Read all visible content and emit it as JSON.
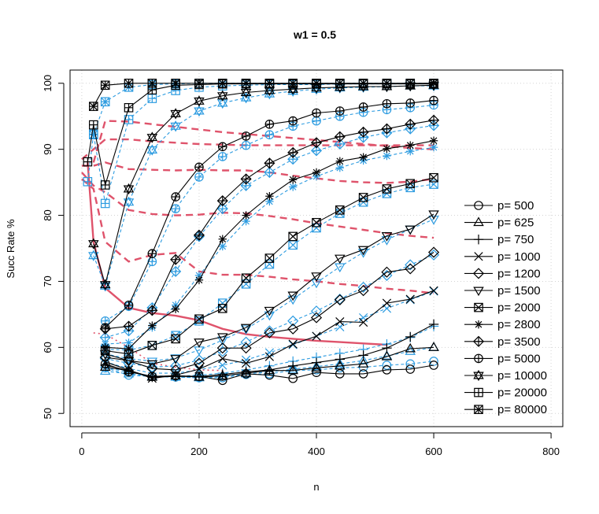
{
  "chart_data": {
    "type": "line",
    "title": "w1 = 0.5",
    "xlabel": "n",
    "ylabel": "Succ Rate %",
    "xlim": [
      -20,
      820
    ],
    "ylim": [
      48,
      102
    ],
    "xticks": [
      0,
      200,
      400,
      600,
      800
    ],
    "yticks": [
      50,
      60,
      70,
      80,
      90,
      100
    ],
    "grid": true,
    "legend_position": "right",
    "colors": {
      "black": "#000000",
      "blue": "#2c9be0",
      "red": "#df536b",
      "grid": "#d3d3d3"
    },
    "x": [
      40,
      80,
      120,
      160,
      200,
      240,
      280,
      320,
      360,
      400,
      440,
      480,
      520,
      560,
      600
    ],
    "series": [
      {
        "name": "p= 500",
        "symbol": "circle",
        "black": [
          57.5,
          56.3,
          55.6,
          55.7,
          55.6,
          55.0,
          56.0,
          55.8,
          55.3,
          56.2,
          56.0,
          56.0,
          56.6,
          56.7,
          57.3
        ],
        "blue": [
          56.9,
          55.8,
          55.6,
          55.5,
          55.4,
          55.4,
          55.9,
          56.0,
          56.5,
          56.6,
          56.9,
          57.0,
          57.3,
          57.5,
          57.9
        ]
      },
      {
        "name": "p= 625",
        "symbol": "triangle-up",
        "black": [
          57.0,
          56.5,
          55.5,
          55.7,
          55.5,
          55.7,
          56.1,
          56.5,
          56.5,
          56.9,
          57.2,
          57.5,
          58.6,
          59.8,
          60.0
        ],
        "blue": [
          56.4,
          56.0,
          55.6,
          55.5,
          55.4,
          55.6,
          56.0,
          56.3,
          56.7,
          57.1,
          57.5,
          58.0,
          58.7,
          59.4,
          60.0
        ]
      },
      {
        "name": "p= 750",
        "symbol": "plus",
        "black": [
          57.3,
          56.5,
          55.5,
          55.6,
          55.6,
          55.9,
          56.3,
          56.6,
          57.2,
          57.7,
          58.2,
          58.8,
          59.9,
          61.6,
          63.5
        ],
        "blue": [
          57.0,
          56.2,
          55.7,
          55.6,
          55.8,
          56.1,
          56.6,
          57.2,
          57.9,
          58.5,
          59.1,
          59.7,
          60.5,
          61.5,
          63.2
        ]
      },
      {
        "name": "p= 1000",
        "symbol": "x",
        "black": [
          57.8,
          56.6,
          55.3,
          55.8,
          56.7,
          58.3,
          57.6,
          58.6,
          60.5,
          61.7,
          63.9,
          63.8,
          66.7,
          67.3,
          68.6
        ],
        "blue": [
          57.8,
          56.8,
          56.1,
          56.1,
          56.6,
          57.3,
          58.1,
          59.2,
          60.4,
          61.7,
          63.1,
          64.5,
          65.9,
          67.2,
          68.5
        ]
      },
      {
        "name": "p= 1200",
        "symbol": "diamond",
        "black": [
          58.5,
          58.0,
          56.8,
          56.6,
          57.6,
          59.9,
          59.9,
          62.2,
          62.8,
          64.5,
          67.2,
          68.6,
          71.4,
          71.9,
          74.4
        ],
        "blue": [
          58.3,
          57.6,
          57.0,
          57.2,
          58.1,
          59.4,
          60.8,
          62.5,
          64.0,
          65.5,
          67.3,
          69.1,
          70.9,
          72.5,
          74.0
        ]
      },
      {
        "name": "p= 1500",
        "symbol": "triangle-down",
        "black": [
          59.0,
          58.0,
          57.5,
          58.3,
          60.8,
          61.6,
          63.0,
          65.6,
          67.9,
          70.8,
          73.5,
          74.8,
          76.9,
          77.9,
          80.2
        ],
        "blue": [
          59.0,
          58.3,
          57.9,
          58.4,
          59.6,
          61.1,
          62.8,
          64.9,
          67.3,
          69.8,
          72.2,
          74.4,
          76.3,
          77.9,
          79.4
        ]
      },
      {
        "name": "p= 2000",
        "symbol": "square-x",
        "black": [
          59.5,
          59.0,
          60.3,
          61.3,
          64.3,
          65.9,
          70.5,
          73.5,
          76.8,
          78.9,
          80.8,
          82.7,
          84.0,
          84.8,
          85.7
        ],
        "blue": [
          59.7,
          59.6,
          60.3,
          61.8,
          64.0,
          66.7,
          69.6,
          72.6,
          75.5,
          78.1,
          80.3,
          82.0,
          83.3,
          84.2,
          84.7
        ]
      },
      {
        "name": "p= 2800",
        "symbol": "asterisk",
        "black": [
          60.0,
          59.8,
          63.3,
          65.8,
          70.2,
          76.4,
          80.0,
          82.9,
          85.4,
          86.5,
          88.2,
          88.8,
          90.1,
          90.6,
          91.3
        ],
        "blue": [
          60.5,
          60.7,
          63.0,
          66.4,
          70.9,
          75.3,
          79.1,
          82.1,
          84.3,
          85.9,
          87.2,
          88.3,
          89.0,
          89.7,
          90.3
        ]
      },
      {
        "name": "p= 3500",
        "symbol": "diamond-plus",
        "black": [
          62.8,
          63.2,
          65.6,
          73.3,
          77.0,
          82.2,
          85.5,
          87.9,
          89.5,
          91.0,
          91.9,
          92.6,
          93.1,
          93.8,
          94.4
        ],
        "blue": [
          61.5,
          62.5,
          66.0,
          71.5,
          76.8,
          81.0,
          84.5,
          86.5,
          88.5,
          89.8,
          90.8,
          91.8,
          92.5,
          93.1,
          93.6
        ]
      },
      {
        "name": "p= 5000",
        "symbol": "circle-plus",
        "black": [
          63.0,
          66.4,
          74.2,
          82.8,
          87.3,
          90.4,
          92.0,
          93.8,
          94.3,
          95.5,
          95.8,
          96.4,
          96.9,
          97.0,
          97.4
        ],
        "blue": [
          64.0,
          66.2,
          73.0,
          81.0,
          85.8,
          88.9,
          90.6,
          92.2,
          93.5,
          94.3,
          95.0,
          95.6,
          96.0,
          96.3,
          96.7
        ]
      },
      {
        "name": "p= 10000",
        "symbol": "star-triangle",
        "black": [
          69.5,
          84.0,
          91.8,
          95.4,
          97.3,
          98.1,
          98.6,
          98.9,
          99.1,
          99.3,
          99.4,
          99.5,
          99.5,
          99.6,
          99.7
        ],
        "blue": [
          69.3,
          82.0,
          89.9,
          93.5,
          95.8,
          97.0,
          97.8,
          98.4,
          98.8,
          99.1,
          99.3,
          99.4,
          99.5,
          99.6,
          99.6
        ]
      },
      {
        "name": "p= 20000",
        "symbol": "square-plus",
        "black": [
          84.6,
          96.3,
          99.0,
          99.7,
          99.8,
          99.9,
          99.9,
          99.9,
          99.9,
          99.9,
          99.9,
          99.9,
          99.9,
          99.9,
          99.9
        ],
        "blue": [
          81.8,
          94.5,
          97.7,
          98.9,
          99.4,
          99.6,
          99.7,
          99.8,
          99.8,
          99.8,
          99.9,
          99.9,
          99.9,
          99.9,
          99.9
        ]
      },
      {
        "name": "p= 80000",
        "symbol": "square-cross",
        "black": [
          99.7,
          100.0,
          100.0,
          100.0,
          100.0,
          100.0,
          100.0,
          100.0,
          100.0,
          100.0,
          100.0,
          100.0,
          100.0,
          100.0,
          100.0
        ],
        "blue": [
          97.2,
          99.4,
          99.8,
          99.9,
          100.0,
          100.0,
          100.0,
          100.0,
          100.0,
          100.0,
          100.0,
          100.0,
          100.0,
          100.0,
          100.0
        ]
      }
    ],
    "early_points": {
      "p= 10000": {
        "x": [
          20
        ],
        "black": [
          75.7
        ],
        "blue": [
          73.9
        ]
      },
      "p= 20000": {
        "x": [
          10,
          20
        ],
        "black": [
          88.1,
          93.7
        ],
        "blue": [
          85.1,
          92.3
        ]
      },
      "p= 80000": {
        "x": [
          20
        ],
        "black": [
          96.5
        ],
        "blue": [
          92.2
        ]
      }
    },
    "red_boundary_solid": {
      "x": [
        10,
        20,
        40,
        80,
        120,
        160,
        200,
        240,
        280,
        320,
        360,
        400,
        440,
        480,
        520
      ],
      "y": [
        88.0,
        76.0,
        69.0,
        66.0,
        65.2,
        64.8,
        64.1,
        62.8,
        62.0,
        61.6,
        61.3,
        61.0,
        60.8,
        60.6,
        60.4
      ]
    },
    "red_dashed": [
      {
        "x": [
          0,
          20,
          40,
          80,
          120,
          160,
          200,
          240,
          280,
          320,
          360,
          400,
          440,
          480,
          520,
          560,
          600
        ],
        "y": [
          85.5,
          84.0,
          76.0,
          73.0,
          74.0,
          74.3,
          71.5,
          71.0,
          71.0,
          70.7,
          70.3,
          70.0,
          69.6,
          69.3,
          68.9,
          68.6,
          68.2
        ]
      },
      {
        "x": [
          0,
          20,
          40,
          80,
          120,
          160,
          200,
          240,
          280,
          320,
          360,
          400,
          440,
          480,
          520,
          560,
          600
        ],
        "y": [
          86.5,
          84.5,
          83.5,
          80.8,
          80.2,
          80.0,
          80.1,
          80.4,
          80.3,
          79.9,
          79.4,
          78.8,
          78.3,
          77.8,
          77.3,
          76.9,
          76.6
        ]
      },
      {
        "x": [
          0,
          20,
          40,
          80,
          120,
          160,
          200,
          240,
          280,
          320,
          360,
          400,
          440,
          480,
          520,
          560,
          600
        ],
        "y": [
          87.5,
          87.5,
          88.0,
          87.0,
          86.9,
          86.8,
          86.9,
          86.8,
          86.8,
          86.5,
          86.0,
          85.6,
          85.2,
          85.0,
          84.9,
          85.1,
          85.5
        ]
      },
      {
        "x": [
          0,
          20,
          40,
          80,
          120,
          160,
          200,
          240,
          280,
          320,
          360,
          400,
          440,
          480,
          520,
          560,
          600
        ],
        "y": [
          88.5,
          90.0,
          91.5,
          91.5,
          91.2,
          91.0,
          90.8,
          90.7,
          90.6,
          90.6,
          90.6,
          90.6,
          90.6,
          90.6,
          90.6,
          90.6,
          90.6
        ]
      },
      {
        "x": [
          20,
          40,
          80,
          120,
          160,
          200,
          240,
          280,
          320,
          360,
          400,
          440,
          480,
          520,
          560,
          600
        ],
        "y": [
          88.0,
          94.3,
          94.2,
          93.8,
          93.4,
          93.0,
          92.6,
          92.3,
          92.0,
          91.7,
          91.4,
          91.1,
          90.8,
          90.5,
          90.2,
          90.0
        ]
      }
    ],
    "red_dotted": {
      "x": [
        20,
        40,
        80,
        120,
        160,
        200,
        240
      ],
      "y": [
        62.2,
        62.0,
        60.0,
        57.6,
        57.0,
        56.6,
        56.5
      ]
    }
  }
}
